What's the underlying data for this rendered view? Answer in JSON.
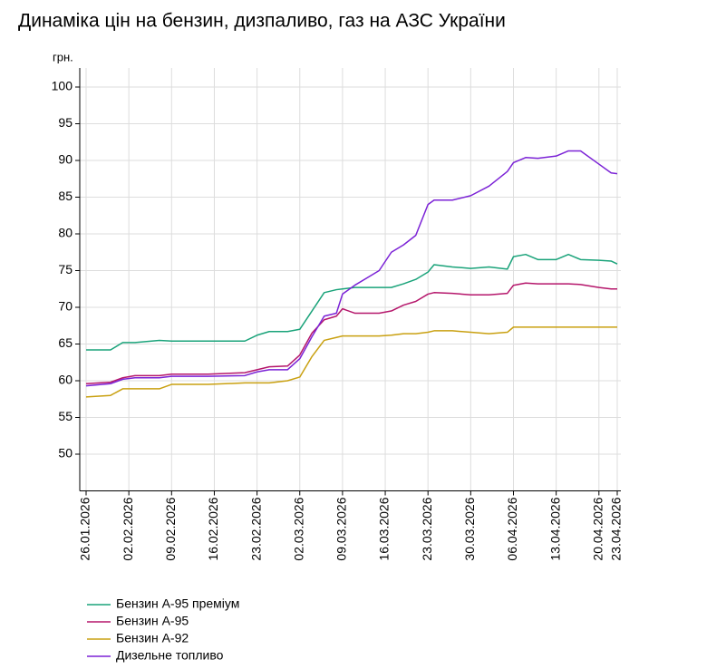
{
  "chart_data": {
    "type": "line",
    "title": "Динаміка цін на бензин, дизпаливо, газ на АЗС України",
    "y_label": "грн.",
    "x": [
      "26.01.2026",
      "30.01.2026",
      "01.02.2026",
      "03.02.2026",
      "07.02.2026",
      "09.02.2026",
      "15.02.2026",
      "21.02.2026",
      "23.02.2026",
      "25.02.2026",
      "28.02.2026",
      "02.03.2026",
      "04.03.2026",
      "06.03.2026",
      "08.03.2026",
      "09.03.2026",
      "11.03.2026",
      "13.03.2026",
      "15.03.2026",
      "17.03.2026",
      "19.03.2026",
      "21.03.2026",
      "23.03.2026",
      "24.03.2026",
      "27.03.2026",
      "30.03.2026",
      "02.04.2026",
      "05.04.2026",
      "06.04.2026",
      "08.04.2026",
      "10.04.2026",
      "13.04.2026",
      "15.04.2026",
      "17.04.2026",
      "20.04.2026",
      "22.04.2026",
      "23.04.2026"
    ],
    "series": [
      {
        "name": "Бензин А-95 преміум",
        "color": "#1aa37a",
        "values": [
          64.2,
          64.2,
          65.2,
          65.2,
          65.5,
          65.4,
          65.4,
          65.4,
          66.2,
          66.7,
          66.7,
          67.0,
          69.5,
          72.0,
          72.4,
          72.5,
          72.7,
          72.7,
          72.7,
          72.7,
          73.2,
          73.8,
          74.8,
          75.8,
          75.5,
          75.3,
          75.5,
          75.2,
          76.9,
          77.2,
          76.5,
          76.5,
          77.2,
          76.5,
          76.4,
          76.3,
          75.9
        ]
      },
      {
        "name": "Бензин А-95",
        "color": "#b5166b",
        "values": [
          59.6,
          59.8,
          60.4,
          60.7,
          60.7,
          60.9,
          60.9,
          61.1,
          61.5,
          61.9,
          62.0,
          63.5,
          66.5,
          68.3,
          68.8,
          69.8,
          69.2,
          69.2,
          69.2,
          69.5,
          70.3,
          70.8,
          71.8,
          72.0,
          71.9,
          71.7,
          71.7,
          71.9,
          73.0,
          73.3,
          73.2,
          73.2,
          73.2,
          73.1,
          72.7,
          72.5,
          72.5
        ]
      },
      {
        "name": "Бензин А-92",
        "color": "#c9a010",
        "values": [
          57.8,
          58.0,
          58.9,
          58.9,
          58.9,
          59.5,
          59.5,
          59.7,
          59.7,
          59.7,
          60.0,
          60.5,
          63.3,
          65.5,
          65.9,
          66.1,
          66.1,
          66.1,
          66.1,
          66.2,
          66.4,
          66.4,
          66.6,
          66.8,
          66.8,
          66.6,
          66.4,
          66.6,
          67.3,
          67.3,
          67.3,
          67.3,
          67.3,
          67.3,
          67.3,
          67.3,
          67.3
        ]
      },
      {
        "name": "Дизельне топливо",
        "color": "#7b22d6",
        "values": [
          59.3,
          59.6,
          60.2,
          60.4,
          60.4,
          60.6,
          60.6,
          60.7,
          61.2,
          61.5,
          61.5,
          63.0,
          66.0,
          68.8,
          69.2,
          71.8,
          73.0,
          74.0,
          75.0,
          77.5,
          78.5,
          79.8,
          84.0,
          84.6,
          84.6,
          85.2,
          86.5,
          88.5,
          89.7,
          90.4,
          90.3,
          90.6,
          91.3,
          91.3,
          89.5,
          88.3,
          88.2
        ]
      }
    ],
    "xticks": [
      "26.01.2026",
      "02.02.2026",
      "09.02.2026",
      "16.02.2026",
      "23.02.2026",
      "02.03.2026",
      "09.03.2026",
      "16.03.2026",
      "23.03.2026",
      "30.03.2026",
      "06.04.2026",
      "13.04.2026",
      "20.04.2026",
      "23.04.2026"
    ],
    "ylim": [
      45,
      100
    ],
    "yticks": [
      50,
      55,
      60,
      65,
      70,
      75,
      80,
      85,
      90,
      95,
      100
    ],
    "grid": true
  }
}
